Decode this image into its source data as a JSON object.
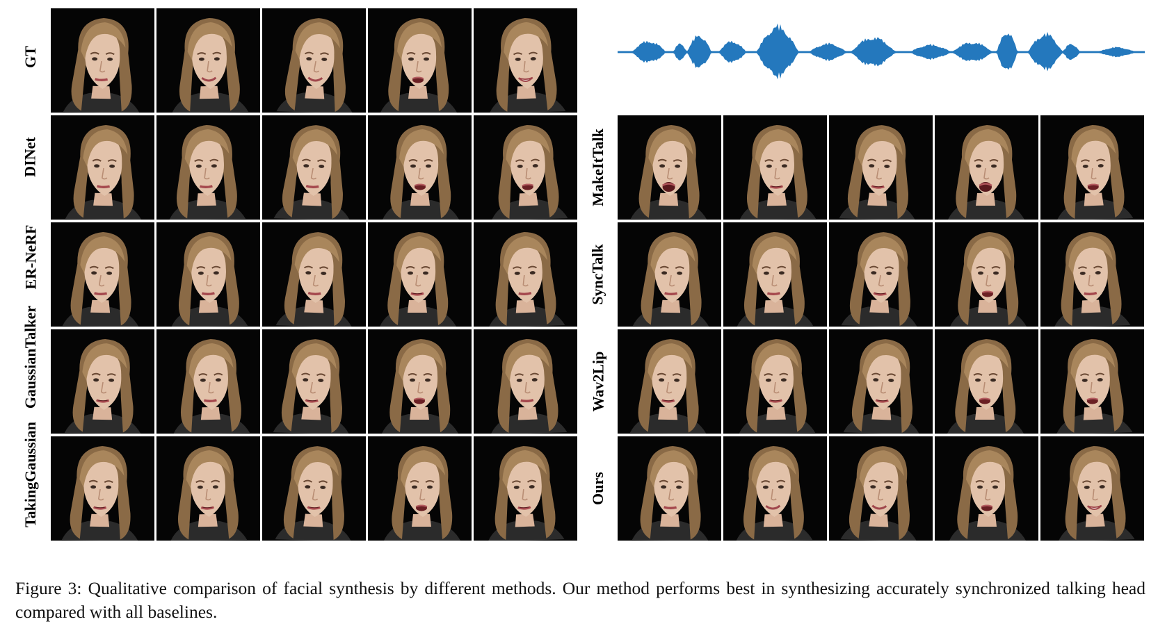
{
  "figure": {
    "left_rows": [
      {
        "label": "GT",
        "mouth": [
          "closed",
          "smile",
          "smile",
          "open",
          "smile-open"
        ]
      },
      {
        "label": "DINet",
        "mouth": [
          "closed",
          "closed",
          "closed",
          "open",
          "open"
        ]
      },
      {
        "label": "ER-NeRF",
        "mouth": [
          "closed",
          "closed",
          "closed",
          "slight",
          "closed"
        ]
      },
      {
        "label": "GaussianTalker",
        "mouth": [
          "slight",
          "closed",
          "slight",
          "open",
          "closed"
        ]
      },
      {
        "label": "TakingGaussian",
        "mouth": [
          "slight",
          "slight",
          "slight",
          "open",
          "slight"
        ]
      }
    ],
    "right_rows": [
      {
        "label": "MakeItTalk",
        "mouth": [
          "open-wide",
          "slight",
          "slight",
          "open-wide",
          "open"
        ]
      },
      {
        "label": "SyncTalk",
        "mouth": [
          "closed",
          "closed",
          "slight",
          "open",
          "closed"
        ]
      },
      {
        "label": "Wav2Lip",
        "mouth": [
          "slight",
          "slight",
          "slight",
          "open",
          "open"
        ]
      },
      {
        "label": "Ours",
        "mouth": [
          "closed",
          "smile",
          "smile",
          "open",
          "smile-open"
        ]
      }
    ],
    "waveform_color": "#2478bd"
  },
  "caption": {
    "text": "Figure 3: Qualitative comparison of facial synthesis by different methods. Our method performs best in synthesizing accurately synchronized talking head compared with all baselines."
  }
}
